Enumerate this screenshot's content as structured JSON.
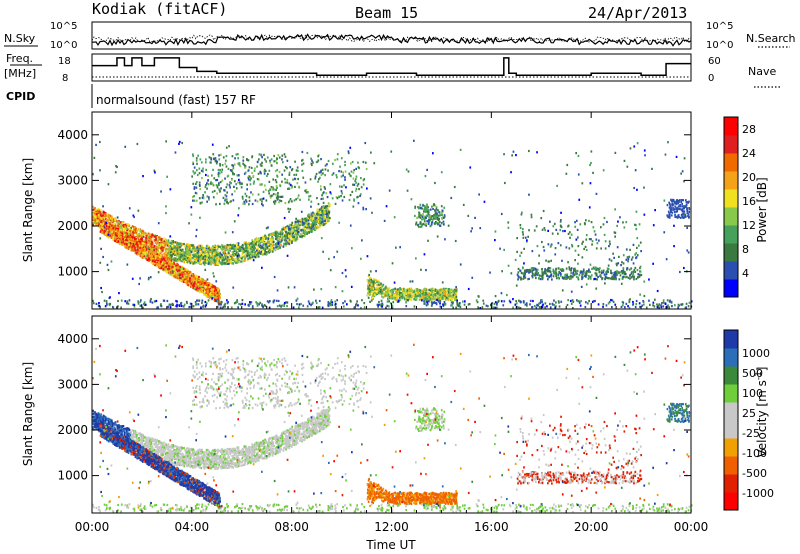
{
  "header": {
    "station": "Kodiak (fitACF)",
    "beam": "Beam 15",
    "date": "24/Apr/2013"
  },
  "noise_panel": {
    "left_label": "N.Sky",
    "right_label": "N.Search",
    "left_ticks": [
      "10^5",
      "10^0"
    ],
    "right_ticks": [
      "10^5",
      "10^0"
    ]
  },
  "freq_panel": {
    "left_label_1": "Freq.",
    "left_label_2": "[MHz]",
    "right_label": "Nave",
    "left_ticks": [
      "18",
      "8"
    ],
    "right_ticks": [
      "60",
      "0"
    ]
  },
  "cpid_panel": {
    "label": "CPID",
    "text": "normalsound (fast) 157 RF"
  },
  "axes": {
    "ylabel": "Slant Range [km]",
    "xlabel": "Time UT",
    "xticks": [
      "00:00",
      "04:00",
      "08:00",
      "12:00",
      "16:00",
      "20:00",
      "00:00"
    ],
    "yticks": [
      "1000",
      "2000",
      "3000",
      "4000"
    ]
  },
  "colors": {
    "power_scale": [
      "#0000ff",
      "#2b4fb0",
      "#3a7a40",
      "#46a25a",
      "#88c84a",
      "#f0e020",
      "#f3a21a",
      "#f06a00",
      "#e02020",
      "#ff0000"
    ],
    "velocity_scale": [
      "#1e3aa8",
      "#2b6fb8",
      "#3b8a3b",
      "#6fcf3a",
      "#c8c8c8",
      "#c8c8c8",
      "#f0a000",
      "#f06000",
      "#e02000",
      "#ff0000"
    ]
  },
  "chart_data": [
    {
      "type": "heatmap",
      "title": "Power",
      "xlabel": "Time UT",
      "ylabel": "Slant Range [km]",
      "xlim": [
        0,
        24
      ],
      "ylim": [
        180,
        4500
      ],
      "colorbar": {
        "label": "Power [dB]",
        "ticks": [
          "4",
          "8",
          "12",
          "16",
          "20",
          "24",
          "28"
        ],
        "range": [
          0,
          30
        ]
      },
      "features": [
        {
          "name": "main-arc",
          "t_start": 0.0,
          "t_end": 9.5,
          "range_start": 2300,
          "range_end": 2000,
          "min_range": 1450,
          "peak_dB": 26
        },
        {
          "name": "descending-trace",
          "t_start": 0.5,
          "t_end": 5.0,
          "range_start": 2000,
          "range_end": 450,
          "peak_dB": 28
        },
        {
          "name": "upper-cloud",
          "t_start": 4.0,
          "t_end": 11.0,
          "range_start": 2500,
          "range_end": 3500,
          "peak_dB": 12
        },
        {
          "name": "midday-band",
          "t_start": 11.0,
          "t_end": 14.5,
          "range_start": 800,
          "range_end": 450,
          "peak_dB": 16
        },
        {
          "name": "evening-echoes",
          "t_start": 17.0,
          "t_end": 22.0,
          "range_start": 900,
          "range_end": 2000,
          "peak_dB": 8
        },
        {
          "name": "late-patch",
          "t_start": 23.0,
          "t_end": 24.0,
          "range_start": 2200,
          "range_end": 2600,
          "peak_dB": 8
        }
      ]
    },
    {
      "type": "heatmap",
      "title": "Velocity",
      "xlabel": "Time UT",
      "ylabel": "Slant Range [km]",
      "xlim": [
        0,
        24
      ],
      "ylim": [
        180,
        4500
      ],
      "colorbar": {
        "label": "Velocity [m s^-1]",
        "ticks": [
          "1000",
          "500",
          "100",
          "25",
          "-25",
          "-100",
          "-500",
          "-1000"
        ]
      },
      "features": [
        {
          "name": "main-arc",
          "t_start": 1.5,
          "t_end": 9.5,
          "velocity": 0
        },
        {
          "name": "descending-trace",
          "t_start": 0.0,
          "t_end": 5.0,
          "velocity": 800
        },
        {
          "name": "upper-cloud",
          "t_start": 4.0,
          "t_end": 11.0,
          "velocity": 0
        },
        {
          "name": "midday-band",
          "t_start": 11.0,
          "t_end": 15.0,
          "velocity": -300
        },
        {
          "name": "evening-echoes",
          "t_start": 17.0,
          "t_end": 22.0,
          "velocity": -500
        },
        {
          "name": "late-patch",
          "t_start": 23.0,
          "t_end": 24.0,
          "velocity": 300
        }
      ]
    }
  ]
}
